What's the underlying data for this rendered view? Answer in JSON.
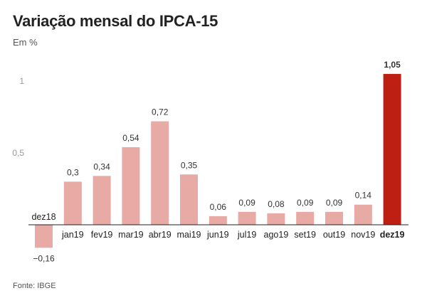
{
  "header": {
    "title": "Variação mensal do IPCA-15",
    "subtitle": "Em %"
  },
  "footer": {
    "source": "Fonte: IBGE"
  },
  "colors": {
    "bar": "#e8aaa5",
    "highlight": "#bd1f13",
    "axis": "#222222"
  },
  "chart_data": {
    "type": "bar",
    "title": "Variação mensal do IPCA-15",
    "subtitle": "Em %",
    "xlabel": "",
    "ylabel": "",
    "categories": [
      "dez18",
      "jan19",
      "fev19",
      "mar19",
      "abr19",
      "mai19",
      "jun19",
      "jul19",
      "ago19",
      "set19",
      "out19",
      "nov19",
      "dez19"
    ],
    "values": [
      -0.16,
      0.3,
      0.34,
      0.54,
      0.72,
      0.35,
      0.06,
      0.09,
      0.08,
      0.09,
      0.09,
      0.14,
      1.05
    ],
    "value_labels": [
      "−0,16",
      "0,3",
      "0,34",
      "0,54",
      "0,72",
      "0,35",
      "0,06",
      "0,09",
      "0,08",
      "0,09",
      "0,09",
      "0,14",
      "1,05"
    ],
    "yticks": [
      0.5,
      1
    ],
    "ytick_labels": [
      "0,5",
      "1"
    ],
    "ylim": [
      -0.2,
      1.1
    ],
    "highlight_category": "dez19",
    "grid": false,
    "legend": "none"
  }
}
